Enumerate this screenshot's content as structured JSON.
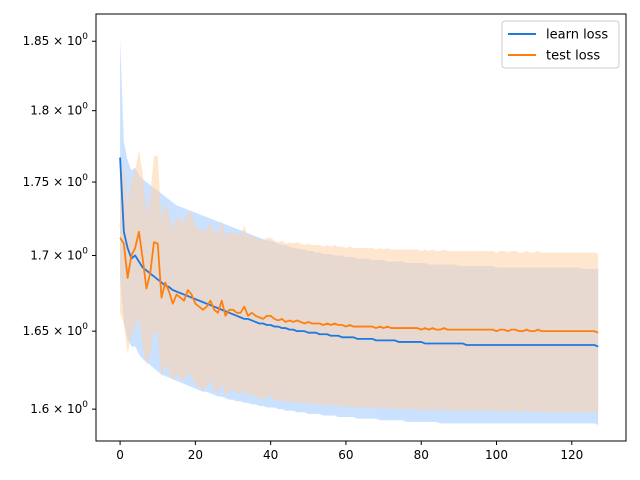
{
  "chart_data": {
    "type": "line",
    "title": "",
    "xlabel": "",
    "ylabel": "",
    "xlim": [
      -6.4,
      134.4
    ],
    "ylim": [
      1.58,
      1.87
    ],
    "yscale": "log",
    "grid": false,
    "legend_position": "top-right",
    "x_ticks": [
      0,
      20,
      40,
      60,
      80,
      100,
      120
    ],
    "y_ticks": [
      {
        "value": 1.6,
        "mantissa": "1.6",
        "base": "10",
        "exp": "0"
      },
      {
        "value": 1.65,
        "mantissa": "1.65",
        "base": "10",
        "exp": "0"
      },
      {
        "value": 1.7,
        "mantissa": "1.7",
        "base": "10",
        "exp": "0"
      },
      {
        "value": 1.75,
        "mantissa": "1.75",
        "base": "10",
        "exp": "0"
      },
      {
        "value": 1.8,
        "mantissa": "1.8",
        "base": "10",
        "exp": "0"
      },
      {
        "value": 1.85,
        "mantissa": "1.85",
        "base": "10",
        "exp": "0"
      }
    ],
    "x_start": 0,
    "x_step": 1,
    "series": [
      {
        "name": "learn loss",
        "color": "#1f77e0",
        "band_color": "#9fcbff",
        "mean": [
          1.767,
          1.716,
          1.705,
          1.698,
          1.7,
          1.696,
          1.692,
          1.69,
          1.688,
          1.686,
          1.684,
          1.682,
          1.68,
          1.679,
          1.677,
          1.676,
          1.675,
          1.674,
          1.673,
          1.672,
          1.671,
          1.67,
          1.669,
          1.668,
          1.667,
          1.666,
          1.665,
          1.664,
          1.663,
          1.662,
          1.661,
          1.66,
          1.659,
          1.658,
          1.658,
          1.657,
          1.656,
          1.655,
          1.655,
          1.654,
          1.654,
          1.653,
          1.653,
          1.652,
          1.652,
          1.651,
          1.651,
          1.65,
          1.65,
          1.65,
          1.649,
          1.649,
          1.649,
          1.648,
          1.648,
          1.648,
          1.647,
          1.647,
          1.647,
          1.646,
          1.646,
          1.646,
          1.646,
          1.645,
          1.645,
          1.645,
          1.645,
          1.645,
          1.644,
          1.644,
          1.644,
          1.644,
          1.644,
          1.644,
          1.643,
          1.643,
          1.643,
          1.643,
          1.643,
          1.643,
          1.643,
          1.642,
          1.642,
          1.642,
          1.642,
          1.642,
          1.642,
          1.642,
          1.642,
          1.642,
          1.642,
          1.642,
          1.641,
          1.641,
          1.641,
          1.641,
          1.641,
          1.641,
          1.641,
          1.641,
          1.641,
          1.641,
          1.641,
          1.641,
          1.641,
          1.641,
          1.641,
          1.641,
          1.641,
          1.641,
          1.641,
          1.641,
          1.641,
          1.641,
          1.641,
          1.641,
          1.641,
          1.641,
          1.641,
          1.641,
          1.641,
          1.641,
          1.641,
          1.641,
          1.641,
          1.641,
          1.641,
          1.64
        ],
        "lower": [
          1.685,
          1.655,
          1.645,
          1.64,
          1.64,
          1.635,
          1.632,
          1.63,
          1.628,
          1.626,
          1.624,
          1.622,
          1.621,
          1.62,
          1.619,
          1.618,
          1.617,
          1.616,
          1.615,
          1.614,
          1.613,
          1.612,
          1.611,
          1.611,
          1.61,
          1.609,
          1.608,
          1.608,
          1.607,
          1.606,
          1.606,
          1.605,
          1.605,
          1.604,
          1.604,
          1.603,
          1.603,
          1.602,
          1.602,
          1.601,
          1.601,
          1.601,
          1.6,
          1.6,
          1.599,
          1.599,
          1.599,
          1.598,
          1.598,
          1.598,
          1.597,
          1.597,
          1.597,
          1.597,
          1.596,
          1.596,
          1.596,
          1.596,
          1.595,
          1.595,
          1.595,
          1.595,
          1.595,
          1.594,
          1.594,
          1.594,
          1.594,
          1.594,
          1.594,
          1.593,
          1.593,
          1.593,
          1.593,
          1.593,
          1.593,
          1.593,
          1.592,
          1.592,
          1.592,
          1.592,
          1.592,
          1.592,
          1.592,
          1.592,
          1.592,
          1.591,
          1.591,
          1.591,
          1.591,
          1.591,
          1.591,
          1.591,
          1.591,
          1.591,
          1.591,
          1.591,
          1.591,
          1.591,
          1.591,
          1.591,
          1.591,
          1.591,
          1.591,
          1.591,
          1.591,
          1.591,
          1.591,
          1.591,
          1.591,
          1.591,
          1.591,
          1.591,
          1.591,
          1.591,
          1.591,
          1.591,
          1.591,
          1.591,
          1.591,
          1.591,
          1.591,
          1.591,
          1.591,
          1.591,
          1.591,
          1.591,
          1.591,
          1.59
        ],
        "upper": [
          1.852,
          1.778,
          1.765,
          1.758,
          1.76,
          1.755,
          1.752,
          1.75,
          1.748,
          1.746,
          1.744,
          1.742,
          1.74,
          1.738,
          1.736,
          1.734,
          1.733,
          1.732,
          1.731,
          1.73,
          1.729,
          1.728,
          1.727,
          1.726,
          1.725,
          1.724,
          1.723,
          1.722,
          1.721,
          1.72,
          1.719,
          1.718,
          1.717,
          1.716,
          1.715,
          1.714,
          1.713,
          1.712,
          1.711,
          1.71,
          1.71,
          1.709,
          1.708,
          1.707,
          1.707,
          1.706,
          1.705,
          1.705,
          1.704,
          1.704,
          1.703,
          1.703,
          1.702,
          1.702,
          1.701,
          1.701,
          1.701,
          1.7,
          1.7,
          1.7,
          1.699,
          1.699,
          1.699,
          1.698,
          1.698,
          1.698,
          1.698,
          1.697,
          1.697,
          1.697,
          1.697,
          1.696,
          1.696,
          1.696,
          1.696,
          1.696,
          1.695,
          1.695,
          1.695,
          1.695,
          1.695,
          1.695,
          1.694,
          1.694,
          1.694,
          1.694,
          1.694,
          1.694,
          1.694,
          1.694,
          1.693,
          1.693,
          1.693,
          1.693,
          1.693,
          1.693,
          1.693,
          1.693,
          1.693,
          1.693,
          1.692,
          1.692,
          1.692,
          1.692,
          1.692,
          1.692,
          1.692,
          1.692,
          1.692,
          1.692,
          1.692,
          1.692,
          1.692,
          1.692,
          1.692,
          1.692,
          1.692,
          1.692,
          1.692,
          1.692,
          1.692,
          1.692,
          1.692,
          1.691,
          1.691,
          1.691,
          1.691,
          1.691
        ]
      },
      {
        "name": "test loss",
        "color": "#ff7f0e",
        "band_color": "#ffd2a8",
        "mean": [
          1.712,
          1.708,
          1.685,
          1.7,
          1.705,
          1.716,
          1.698,
          1.678,
          1.688,
          1.709,
          1.708,
          1.672,
          1.682,
          1.676,
          1.668,
          1.674,
          1.672,
          1.67,
          1.677,
          1.674,
          1.668,
          1.666,
          1.664,
          1.666,
          1.67,
          1.664,
          1.662,
          1.67,
          1.66,
          1.664,
          1.664,
          1.662,
          1.662,
          1.666,
          1.66,
          1.662,
          1.66,
          1.659,
          1.658,
          1.66,
          1.66,
          1.658,
          1.657,
          1.658,
          1.656,
          1.657,
          1.656,
          1.657,
          1.656,
          1.655,
          1.656,
          1.655,
          1.655,
          1.655,
          1.654,
          1.655,
          1.654,
          1.655,
          1.654,
          1.654,
          1.653,
          1.654,
          1.653,
          1.653,
          1.653,
          1.653,
          1.653,
          1.653,
          1.652,
          1.653,
          1.652,
          1.653,
          1.652,
          1.652,
          1.652,
          1.652,
          1.652,
          1.652,
          1.652,
          1.652,
          1.651,
          1.652,
          1.651,
          1.652,
          1.651,
          1.651,
          1.652,
          1.651,
          1.651,
          1.651,
          1.651,
          1.651,
          1.651,
          1.651,
          1.651,
          1.651,
          1.651,
          1.651,
          1.651,
          1.651,
          1.65,
          1.651,
          1.651,
          1.65,
          1.651,
          1.651,
          1.65,
          1.65,
          1.651,
          1.65,
          1.65,
          1.651,
          1.65,
          1.65,
          1.65,
          1.65,
          1.65,
          1.65,
          1.65,
          1.65,
          1.65,
          1.65,
          1.65,
          1.65,
          1.65,
          1.65,
          1.65,
          1.649
        ],
        "lower": [
          1.662,
          1.655,
          1.635,
          1.648,
          1.652,
          1.66,
          1.64,
          1.628,
          1.635,
          1.65,
          1.648,
          1.62,
          1.628,
          1.624,
          1.618,
          1.622,
          1.62,
          1.618,
          1.624,
          1.62,
          1.616,
          1.614,
          1.612,
          1.614,
          1.618,
          1.612,
          1.61,
          1.616,
          1.608,
          1.612,
          1.612,
          1.61,
          1.61,
          1.612,
          1.608,
          1.61,
          1.608,
          1.607,
          1.606,
          1.608,
          1.608,
          1.606,
          1.605,
          1.606,
          1.604,
          1.605,
          1.604,
          1.605,
          1.604,
          1.603,
          1.604,
          1.603,
          1.603,
          1.603,
          1.602,
          1.603,
          1.602,
          1.603,
          1.602,
          1.602,
          1.601,
          1.602,
          1.601,
          1.601,
          1.601,
          1.601,
          1.601,
          1.601,
          1.6,
          1.601,
          1.6,
          1.601,
          1.6,
          1.6,
          1.6,
          1.6,
          1.6,
          1.6,
          1.6,
          1.6,
          1.599,
          1.6,
          1.599,
          1.6,
          1.599,
          1.599,
          1.6,
          1.599,
          1.599,
          1.599,
          1.599,
          1.599,
          1.599,
          1.599,
          1.599,
          1.599,
          1.599,
          1.599,
          1.599,
          1.599,
          1.598,
          1.599,
          1.599,
          1.598,
          1.599,
          1.599,
          1.598,
          1.598,
          1.599,
          1.598,
          1.598,
          1.599,
          1.598,
          1.598,
          1.598,
          1.598,
          1.598,
          1.598,
          1.598,
          1.598,
          1.598,
          1.598,
          1.598,
          1.598,
          1.598,
          1.598,
          1.598,
          1.597
        ],
        "upper": [
          1.762,
          1.76,
          1.735,
          1.752,
          1.758,
          1.772,
          1.756,
          1.728,
          1.741,
          1.768,
          1.768,
          1.724,
          1.736,
          1.728,
          1.718,
          1.726,
          1.724,
          1.722,
          1.73,
          1.728,
          1.72,
          1.718,
          1.716,
          1.718,
          1.722,
          1.716,
          1.714,
          1.724,
          1.712,
          1.716,
          1.716,
          1.714,
          1.714,
          1.72,
          1.712,
          1.714,
          1.712,
          1.711,
          1.71,
          1.712,
          1.712,
          1.71,
          1.709,
          1.71,
          1.708,
          1.709,
          1.708,
          1.709,
          1.708,
          1.707,
          1.708,
          1.707,
          1.707,
          1.707,
          1.706,
          1.707,
          1.706,
          1.707,
          1.706,
          1.706,
          1.705,
          1.706,
          1.705,
          1.705,
          1.705,
          1.705,
          1.705,
          1.705,
          1.704,
          1.705,
          1.704,
          1.705,
          1.704,
          1.704,
          1.704,
          1.704,
          1.704,
          1.704,
          1.704,
          1.704,
          1.703,
          1.704,
          1.703,
          1.704,
          1.703,
          1.703,
          1.704,
          1.703,
          1.703,
          1.703,
          1.703,
          1.703,
          1.703,
          1.703,
          1.703,
          1.703,
          1.703,
          1.703,
          1.703,
          1.703,
          1.702,
          1.703,
          1.703,
          1.702,
          1.703,
          1.703,
          1.702,
          1.702,
          1.703,
          1.702,
          1.702,
          1.703,
          1.702,
          1.702,
          1.702,
          1.702,
          1.702,
          1.702,
          1.702,
          1.702,
          1.702,
          1.702,
          1.702,
          1.702,
          1.702,
          1.702,
          1.702,
          1.701
        ]
      }
    ]
  }
}
